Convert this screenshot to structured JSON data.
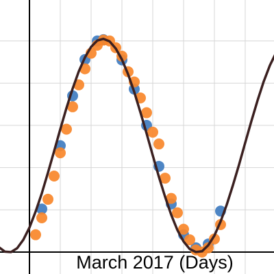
{
  "chart_data": {
    "type": "scatter",
    "x_label": "March 2017 (Days)",
    "xlim": [
      -4.78,
      39.67
    ],
    "ylim": [
      -0.52,
      5.97
    ],
    "xticks": [
      0,
      5,
      10,
      15,
      20,
      25,
      30,
      35
    ],
    "yticks": [
      0,
      1,
      2,
      3,
      4,
      5
    ],
    "grid": true,
    "series": [
      {
        "kind": "points",
        "color": "#3f7cc0",
        "x": [
          2,
          5,
          7,
          9,
          11,
          12,
          15,
          17,
          19,
          21,
          23,
          25,
          27,
          29,
          31
        ],
        "values": [
          1.02,
          2.52,
          3.7,
          4.56,
          5.0,
          5.03,
          4.55,
          3.86,
          3.0,
          2.03,
          1.14,
          0.41,
          0.1,
          0.19,
          0.97
        ]
      },
      {
        "kind": "points",
        "color": "#f8872a",
        "x": [
          1,
          2,
          3,
          4,
          5,
          6,
          7,
          8,
          9,
          10,
          11,
          12,
          13,
          14,
          15,
          16,
          17,
          18,
          19,
          20,
          21,
          22,
          23,
          24,
          25,
          26,
          27,
          28,
          29,
          30,
          31
        ],
        "values": [
          0.41,
          0.81,
          1.25,
          1.8,
          2.35,
          2.91,
          3.44,
          3.96,
          4.34,
          4.71,
          4.9,
          5.02,
          5.0,
          4.84,
          4.64,
          4.27,
          4.03,
          3.65,
          3.3,
          2.84,
          2.56,
          1.75,
          1.27,
          0.93,
          0.54,
          0.29,
          0.05,
          0.0,
          0.1,
          0.31,
          0.65
        ]
      },
      {
        "kind": "curve",
        "color": "#3b2020",
        "x": [
          -5,
          -4,
          -3,
          -2,
          -1,
          0,
          1,
          2,
          3,
          4,
          5,
          6,
          7,
          8,
          9,
          10,
          11,
          12,
          13,
          14,
          15,
          16,
          17,
          18,
          19,
          20,
          21,
          22,
          23,
          24,
          25,
          26,
          27,
          28,
          29,
          30,
          31,
          32,
          33,
          34,
          35,
          36,
          37,
          38,
          39,
          40
        ],
        "values": [
          0.12,
          0.01,
          0.0,
          0.09,
          0.29,
          0.58,
          0.96,
          1.39,
          1.88,
          2.39,
          2.91,
          3.41,
          3.87,
          4.28,
          4.61,
          4.86,
          5.01,
          5.05,
          4.99,
          4.82,
          4.56,
          4.21,
          3.79,
          3.31,
          2.81,
          2.29,
          1.78,
          1.31,
          0.88,
          0.52,
          0.25,
          0.07,
          0.0,
          0.02,
          0.16,
          0.39,
          0.72,
          1.12,
          1.58,
          2.07,
          2.59,
          3.1,
          3.59,
          4.04,
          4.42,
          4.72
        ]
      }
    ]
  }
}
